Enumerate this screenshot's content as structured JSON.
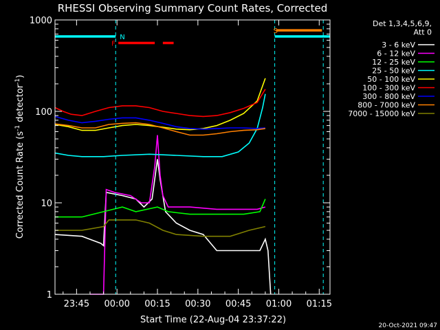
{
  "chart_data": {
    "type": "line",
    "title": "RHESSI Observing Summary Count Rates, Corrected",
    "xlabel": "Start Time (22-Aug-04 23:37:22)",
    "ylabel_main": "Corrected Count Rate (s",
    "ylabel_sup1": "-1",
    "ylabel_mid": " detector",
    "ylabel_sup2": "-1",
    "ylabel_end": ")",
    "footer": "20-Oct-2021 09:47",
    "y_scale": "log",
    "ylim": [
      1,
      1000
    ],
    "x_unit": "minutes since 23:37:22",
    "xlim": [
      0,
      102
    ],
    "x_ticks": [
      {
        "v": 8,
        "label": "23:45"
      },
      {
        "v": 23,
        "label": "00:00"
      },
      {
        "v": 38,
        "label": "00:15"
      },
      {
        "v": 53,
        "label": "00:30"
      },
      {
        "v": 68,
        "label": "00:45"
      },
      {
        "v": 83,
        "label": "01:00"
      },
      {
        "v": 98,
        "label": "01:15"
      }
    ],
    "y_ticks": [
      {
        "v": 1,
        "label": "1"
      },
      {
        "v": 10,
        "label": "10"
      },
      {
        "v": 100,
        "label": "100"
      },
      {
        "v": 1000,
        "label": "1000"
      }
    ],
    "legend_header": [
      "Det 1,3,4,5,6,9,",
      "Att 0"
    ],
    "legend_position": "right",
    "series": [
      {
        "name": "3 - 6 keV",
        "color": "#ffffff",
        "pts": [
          [
            0,
            4.5
          ],
          [
            10,
            4.3
          ],
          [
            17,
            3.6
          ],
          [
            18,
            3.4
          ],
          [
            19,
            13
          ],
          [
            25,
            12
          ],
          [
            30,
            11
          ],
          [
            33,
            9
          ],
          [
            36,
            11
          ],
          [
            38,
            30
          ],
          [
            39,
            18
          ],
          [
            41,
            8
          ],
          [
            45,
            6
          ],
          [
            50,
            5
          ],
          [
            55,
            4.5
          ],
          [
            60,
            3
          ],
          [
            65,
            3
          ],
          [
            70,
            3
          ],
          [
            76,
            3
          ],
          [
            78,
            4
          ],
          [
            79,
            3
          ],
          [
            80,
            1
          ]
        ]
      },
      {
        "name": "6 - 12 keV",
        "color": "#ff00ff",
        "pts": [
          [
            13,
            1
          ],
          [
            14,
            1
          ],
          [
            15,
            1
          ],
          [
            16,
            1
          ],
          [
            17,
            1
          ],
          [
            18,
            1
          ],
          [
            19,
            14
          ],
          [
            22,
            13
          ],
          [
            28,
            12
          ],
          [
            32,
            10
          ],
          [
            35,
            10
          ],
          [
            37,
            25
          ],
          [
            38,
            55
          ],
          [
            39,
            20
          ],
          [
            40,
            12
          ],
          [
            42,
            9
          ],
          [
            50,
            9
          ],
          [
            60,
            8.5
          ],
          [
            70,
            8.5
          ],
          [
            75,
            8.5
          ],
          [
            78,
            9
          ]
        ]
      },
      {
        "name": "12 - 25 keV",
        "color": "#00ff00",
        "pts": [
          [
            0,
            7
          ],
          [
            10,
            7
          ],
          [
            18,
            8
          ],
          [
            25,
            9
          ],
          [
            30,
            8
          ],
          [
            38,
            9
          ],
          [
            42,
            8
          ],
          [
            50,
            7.5
          ],
          [
            60,
            7.5
          ],
          [
            70,
            7.5
          ],
          [
            76,
            8
          ],
          [
            78,
            11
          ]
        ]
      },
      {
        "name": "25 - 50 keV",
        "color": "#00ffff",
        "pts": [
          [
            0,
            35
          ],
          [
            5,
            33
          ],
          [
            10,
            32
          ],
          [
            18,
            32
          ],
          [
            25,
            33
          ],
          [
            35,
            34
          ],
          [
            45,
            33
          ],
          [
            55,
            32
          ],
          [
            62,
            32
          ],
          [
            68,
            36
          ],
          [
            72,
            45
          ],
          [
            75,
            65
          ],
          [
            77,
            110
          ],
          [
            78,
            155
          ]
        ]
      },
      {
        "name": "50 - 100 keV",
        "color": "#ffff00",
        "pts": [
          [
            0,
            72
          ],
          [
            5,
            68
          ],
          [
            10,
            62
          ],
          [
            15,
            62
          ],
          [
            20,
            66
          ],
          [
            25,
            70
          ],
          [
            30,
            72
          ],
          [
            35,
            70
          ],
          [
            40,
            67
          ],
          [
            45,
            64
          ],
          [
            50,
            63
          ],
          [
            55,
            65
          ],
          [
            60,
            70
          ],
          [
            65,
            80
          ],
          [
            70,
            95
          ],
          [
            75,
            130
          ],
          [
            78,
            230
          ]
        ]
      },
      {
        "name": "100 - 300 keV",
        "color": "#ff0000",
        "pts": [
          [
            0,
            110
          ],
          [
            3,
            100
          ],
          [
            6,
            93
          ],
          [
            10,
            90
          ],
          [
            15,
            100
          ],
          [
            20,
            110
          ],
          [
            25,
            115
          ],
          [
            30,
            115
          ],
          [
            35,
            110
          ],
          [
            40,
            100
          ],
          [
            45,
            95
          ],
          [
            50,
            90
          ],
          [
            55,
            88
          ],
          [
            60,
            90
          ],
          [
            65,
            97
          ],
          [
            70,
            108
          ],
          [
            75,
            125
          ],
          [
            78,
            175
          ]
        ]
      },
      {
        "name": "300 - 800 keV",
        "color": "#0000ff",
        "pts": [
          [
            0,
            88
          ],
          [
            5,
            80
          ],
          [
            10,
            75
          ],
          [
            15,
            78
          ],
          [
            20,
            82
          ],
          [
            25,
            85
          ],
          [
            30,
            85
          ],
          [
            35,
            80
          ],
          [
            40,
            74
          ],
          [
            45,
            68
          ],
          [
            50,
            65
          ],
          [
            55,
            64
          ],
          [
            60,
            65
          ],
          [
            65,
            66
          ],
          [
            70,
            66
          ],
          [
            75,
            65
          ],
          [
            78,
            66
          ]
        ]
      },
      {
        "name": "800 - 7000 keV",
        "color": "#ff8000",
        "pts": [
          [
            0,
            73
          ],
          [
            5,
            70
          ],
          [
            10,
            66
          ],
          [
            15,
            66
          ],
          [
            20,
            72
          ],
          [
            25,
            74
          ],
          [
            30,
            75
          ],
          [
            35,
            72
          ],
          [
            40,
            66
          ],
          [
            45,
            60
          ],
          [
            50,
            55
          ],
          [
            55,
            55
          ],
          [
            60,
            57
          ],
          [
            65,
            60
          ],
          [
            70,
            62
          ],
          [
            75,
            63
          ],
          [
            78,
            65
          ]
        ]
      },
      {
        "name": "7000 - 15000 keV",
        "color": "#808000",
        "pts": [
          [
            0,
            5
          ],
          [
            10,
            5
          ],
          [
            18,
            5.5
          ],
          [
            20,
            6.5
          ],
          [
            25,
            6.5
          ],
          [
            30,
            6.5
          ],
          [
            35,
            6
          ],
          [
            40,
            5
          ],
          [
            45,
            4.5
          ],
          [
            55,
            4.3
          ],
          [
            65,
            4.3
          ],
          [
            72,
            5
          ],
          [
            78,
            5.5
          ]
        ]
      }
    ],
    "flags": [
      {
        "label": "N",
        "color": "#00ffff",
        "segments": [
          [
            0,
            22.5
          ],
          [
            81.5,
            102
          ]
        ],
        "level": 660,
        "markers": [
          22.5,
          81.5,
          99.5
        ]
      },
      {
        "label": "F",
        "color": "#ff0000",
        "segments": [
          [
            23.5,
            37
          ],
          [
            40,
            44
          ]
        ],
        "level": 560
      },
      {
        "label": "S",
        "color": "#ff8000",
        "segments": [
          [
            82,
            99
          ]
        ],
        "level": 770
      }
    ],
    "grid": false
  }
}
